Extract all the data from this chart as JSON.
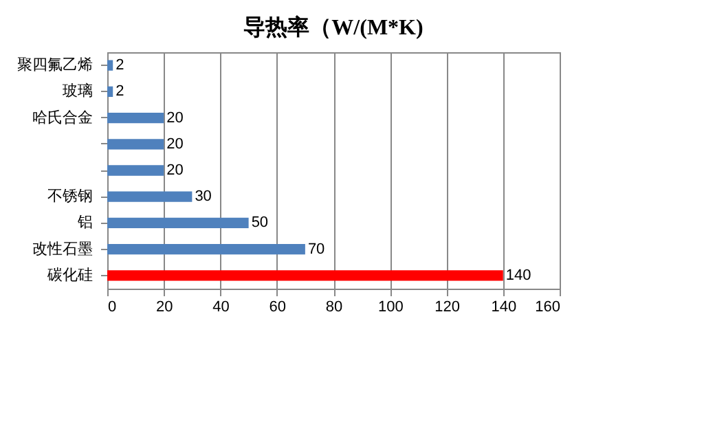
{
  "chart_data": {
    "type": "bar",
    "orientation": "horizontal",
    "title": "导热率（W/(M*K)",
    "categories": [
      "聚四氟乙烯",
      "玻璃",
      "哈氏合金",
      null,
      null,
      "不锈钢",
      "铝",
      "改性石墨",
      "碳化硅"
    ],
    "values": [
      2,
      2,
      20,
      20,
      20,
      30,
      50,
      70,
      140
    ],
    "colors": [
      "#4f81bd",
      "#4f81bd",
      "#4f81bd",
      "#4f81bd",
      "#4f81bd",
      "#4f81bd",
      "#4f81bd",
      "#4f81bd",
      "#ff0000"
    ],
    "xlim": [
      0,
      160
    ],
    "xticks": [
      0,
      20,
      40,
      60,
      80,
      100,
      120,
      140,
      160
    ],
    "grid": "x",
    "data_labels": true
  }
}
